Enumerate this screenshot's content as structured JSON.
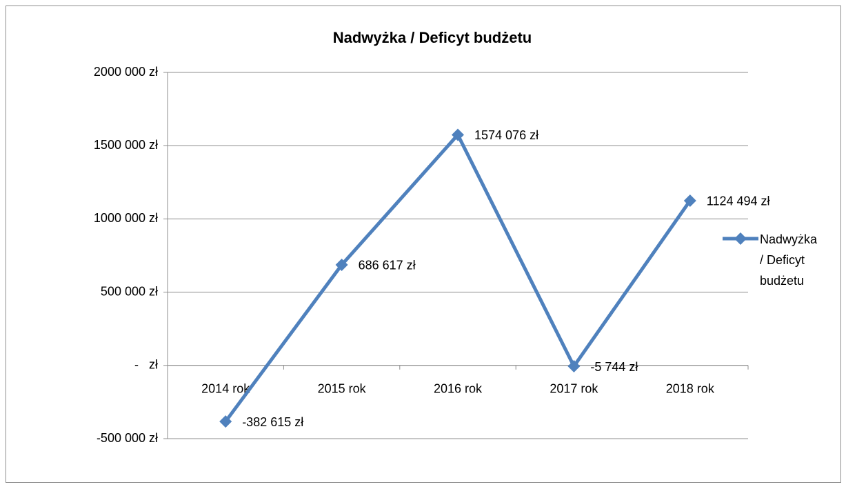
{
  "chart_data": {
    "type": "line",
    "title": "Nadwyżka / Deficyt budżetu",
    "categories": [
      "2014 rok",
      "2015 rok",
      "2016 rok",
      "2017 rok",
      "2018 rok"
    ],
    "series": [
      {
        "name": "Nadwyżka / Deficyt budżetu",
        "color": "#4f81bd",
        "values": [
          -382615,
          686617,
          1574076,
          -5744,
          1124494
        ],
        "value_labels": [
          "-382 615 zł",
          "686 617 zł",
          "1574 076 zł",
          "-5 744 zł",
          "1124 494 zł"
        ]
      }
    ],
    "ylim": [
      -500000,
      2000000
    ],
    "yticks": [
      {
        "value": -500000,
        "label": "-500 000 zł"
      },
      {
        "value": 0,
        "label": "-   zł"
      },
      {
        "value": 500000,
        "label": "500 000 zł"
      },
      {
        "value": 1000000,
        "label": "1000 000 zł"
      },
      {
        "value": 1500000,
        "label": "1500 000 zł"
      },
      {
        "value": 2000000,
        "label": "2000 000 zł"
      }
    ],
    "grid": true,
    "legend": "right"
  }
}
